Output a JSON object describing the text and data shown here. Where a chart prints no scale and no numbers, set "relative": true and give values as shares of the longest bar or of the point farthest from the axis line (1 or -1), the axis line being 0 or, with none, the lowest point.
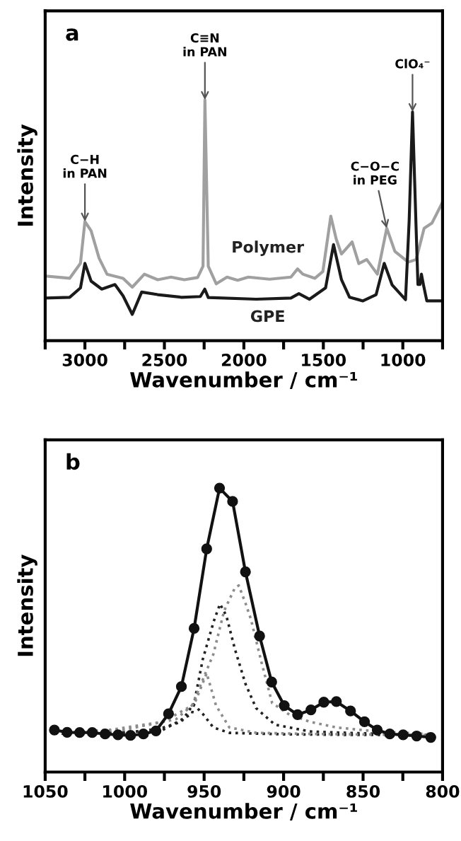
{
  "chart_data": [
    {
      "type": "line",
      "title": "a",
      "xlabel": "Wavenumber / cm⁻¹",
      "ylabel": "Intensity",
      "relative": true,
      "marker": "none",
      "line_style": "solid",
      "xlim": [
        3250,
        750
      ],
      "xticks": [
        {
          "value": 3250,
          "label": null
        },
        3000,
        {
          "value": 2750,
          "label": null
        },
        2500,
        {
          "value": 2250,
          "label": null
        },
        2000,
        {
          "value": 1750,
          "label": null
        },
        1500,
        {
          "value": 1250,
          "label": null
        },
        1000,
        {
          "value": 750,
          "label": null
        }
      ],
      "annotations": [
        {
          "text": "C−H\nin PAN",
          "x": 3000,
          "y": 0.495
        },
        {
          "text": "C≡N\nin PAN",
          "x": 2245,
          "y": 1.0
        },
        {
          "text": "C−O−C\nin PEG",
          "x": 1101,
          "y": 0.467
        },
        {
          "text": "ClO₄⁻",
          "x": 939,
          "y": 0.95
        }
      ],
      "series": [
        {
          "name": "Polymer",
          "color": "#a0a0a0",
          "x": [
            3246,
            3096,
            3028,
            3000,
            2961,
            2911,
            2861,
            2760,
            2702,
            2626,
            2542,
            2458,
            2375,
            2291,
            2257,
            2245,
            2224,
            2174,
            2106,
            2039,
            1972,
            1838,
            1704,
            1662,
            1629,
            1553,
            1503,
            1453,
            1419,
            1386,
            1319,
            1277,
            1227,
            1160,
            1101,
            1050,
            966,
            916,
            866,
            816,
            754
          ],
          "values": [
            0.268,
            0.259,
            0.321,
            0.495,
            0.456,
            0.343,
            0.276,
            0.259,
            0.222,
            0.276,
            0.253,
            0.264,
            0.253,
            0.262,
            0.309,
            1.0,
            0.309,
            0.236,
            0.264,
            0.251,
            0.264,
            0.255,
            0.264,
            0.298,
            0.276,
            0.259,
            0.287,
            0.517,
            0.422,
            0.36,
            0.41,
            0.32,
            0.337,
            0.276,
            0.467,
            0.371,
            0.326,
            0.337,
            0.467,
            0.489,
            0.57
          ]
        },
        {
          "name": "GPE",
          "color": "#1a1a1a",
          "x": [
            3246,
            3096,
            3028,
            3000,
            2961,
            2894,
            2811,
            2760,
            2702,
            2643,
            2542,
            2392,
            2274,
            2246,
            2224,
            1922,
            1704,
            1654,
            1587,
            1486,
            1436,
            1386,
            1335,
            1251,
            1168,
            1117,
            1067,
            983,
            960,
            939,
            918,
            905,
            892,
            883,
            870,
            849,
            816,
            754
          ],
          "values": [
            0.177,
            0.18,
            0.219,
            0.321,
            0.247,
            0.214,
            0.233,
            0.186,
            0.109,
            0.202,
            0.191,
            0.18,
            0.183,
            0.214,
            0.179,
            0.172,
            0.177,
            0.195,
            0.172,
            0.219,
            0.399,
            0.253,
            0.18,
            0.165,
            0.191,
            0.321,
            0.231,
            0.17,
            0.5,
            0.95,
            0.5,
            0.233,
            0.233,
            0.276,
            0.231,
            0.165,
            0.165,
            0.165
          ]
        }
      ]
    },
    {
      "type": "line",
      "title": "b",
      "xlabel": "Wavenumber / cm⁻¹",
      "ylabel": "Intensity",
      "relative": true,
      "xlim": [
        1050,
        800
      ],
      "xticks": [
        1050,
        {
          "value": 1025,
          "label": null
        },
        1000,
        {
          "value": 975,
          "label": null
        },
        950,
        {
          "value": 925,
          "label": null
        },
        900,
        {
          "value": 875,
          "label": null
        },
        850,
        {
          "value": 825,
          "label": null
        },
        800
      ],
      "series": [
        {
          "color": "#222222",
          "line_style": "dotted",
          "marker": "none",
          "x": [
            1044,
            1000,
            976,
            957.6,
            950.9,
            944,
            940,
            936,
            930.7,
            924,
            917.3,
            905.5,
            883.6,
            860,
            830,
            808
          ],
          "values": [
            0.135,
            0.14,
            0.148,
            0.205,
            0.396,
            0.53,
            0.592,
            0.55,
            0.434,
            0.311,
            0.225,
            0.167,
            0.143,
            0.138,
            0.133,
            0.13
          ]
        },
        {
          "color": "#222222",
          "line_style": "dotted",
          "marker": "none",
          "x": [
            1044,
            1000,
            977.8,
            964.3,
            956.8,
            950.9,
            944.2,
            934.1,
            900,
            860,
            808
          ],
          "values": [
            0.135,
            0.138,
            0.153,
            0.177,
            0.239,
            0.205,
            0.157,
            0.138,
            0.133,
            0.131,
            0.13
          ]
        },
        {
          "color": "#8c8c8c",
          "line_style": "dotted",
          "marker": "none",
          "x": [
            1044,
            1001,
            967.7,
            955.9,
            948.4,
            942.5,
            934.1,
            917.3,
            880,
            840,
            808
          ],
          "values": [
            0.138,
            0.148,
            0.186,
            0.243,
            0.348,
            0.234,
            0.157,
            0.138,
            0.134,
            0.132,
            0.13
          ]
        },
        {
          "color": "#8c8c8c",
          "line_style": "dotted",
          "marker": "none",
          "x": [
            1044,
            1009.8,
            976,
            957.6,
            944.2,
            937.4,
            930.7,
            928.2,
            924,
            920.6,
            913.9,
            907.2,
            897.1,
            883.6,
            866.8,
            841.6,
            808
          ],
          "values": [
            0.138,
            0.148,
            0.177,
            0.234,
            0.415,
            0.568,
            0.648,
            0.657,
            0.595,
            0.539,
            0.386,
            0.243,
            0.205,
            0.177,
            0.157,
            0.143,
            0.134
          ]
        },
        {
          "color": "#111111",
          "line_style": "solid",
          "marker": "circle",
          "x": [
            1044.2,
            1036.2,
            1028.3,
            1020.4,
            1012.3,
            1004.2,
            996.3,
            988.2,
            980.3,
            972.4,
            964.3,
            956.3,
            948.4,
            940.3,
            932.1,
            924.0,
            915.1,
            907.5,
            899.6,
            891.2,
            882.8,
            874.7,
            866.8,
            857.9,
            849.1,
            841.1,
            833.2,
            824.8,
            816.3,
            807.4
          ],
          "values": [
            0.148,
            0.14,
            0.139,
            0.139,
            0.134,
            0.131,
            0.129,
            0.134,
            0.145,
            0.205,
            0.301,
            0.506,
            0.786,
            1.0,
            0.953,
            0.705,
            0.479,
            0.317,
            0.234,
            0.202,
            0.219,
            0.246,
            0.248,
            0.215,
            0.177,
            0.148,
            0.134,
            0.131,
            0.127,
            0.122
          ]
        }
      ]
    }
  ]
}
